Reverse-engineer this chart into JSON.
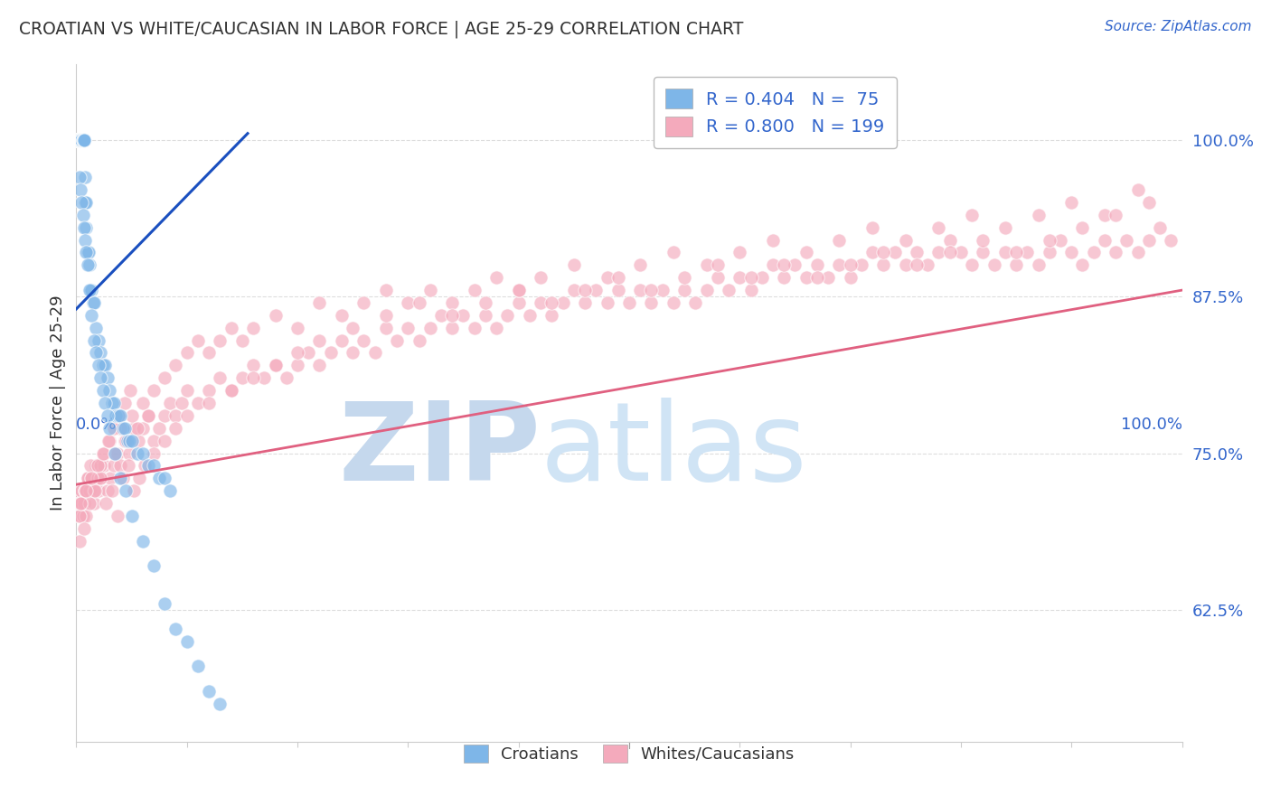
{
  "title": "CROATIAN VS WHITE/CAUCASIAN IN LABOR FORCE | AGE 25-29 CORRELATION CHART",
  "source": "Source: ZipAtlas.com",
  "ylabel": "In Labor Force | Age 25-29",
  "y_tick_labels": [
    "62.5%",
    "75.0%",
    "87.5%",
    "100.0%"
  ],
  "y_tick_values": [
    0.625,
    0.75,
    0.875,
    1.0
  ],
  "legend": {
    "blue_R": "R = 0.404",
    "blue_N": "N =  75",
    "pink_R": "R = 0.800",
    "pink_N": "N = 199"
  },
  "blue_color": "#7EB6E8",
  "pink_color": "#F4AABC",
  "blue_line_color": "#1A4FBF",
  "pink_line_color": "#E06080",
  "blue_scatter_x": [
    0.001,
    0.001,
    0.001,
    0.001,
    0.001,
    0.001,
    0.001,
    0.001,
    0.001,
    0.001,
    0.001,
    0.001,
    0.001,
    0.001,
    0.001,
    0.001,
    0.002,
    0.002,
    0.002,
    0.002,
    0.002,
    0.002,
    0.003,
    0.003,
    0.003,
    0.003,
    0.003,
    0.004,
    0.004,
    0.004,
    0.004,
    0.005,
    0.005,
    0.005,
    0.006,
    0.006,
    0.006,
    0.007,
    0.007,
    0.007,
    0.008,
    0.008,
    0.009,
    0.009,
    0.01,
    0.011,
    0.012,
    0.013,
    0.014,
    0.015,
    0.016,
    0.018,
    0.02,
    0.022,
    0.024,
    0.026,
    0.028,
    0.03,
    0.032,
    0.034,
    0.036,
    0.038,
    0.04,
    0.042,
    0.044,
    0.046,
    0.048,
    0.05,
    0.055,
    0.06,
    0.065,
    0.07,
    0.075,
    0.08,
    0.085
  ],
  "blue_scatter_y": [
    1.0,
    1.0,
    1.0,
    1.0,
    1.0,
    1.0,
    1.0,
    1.0,
    1.0,
    1.0,
    1.0,
    1.0,
    1.0,
    1.0,
    1.0,
    1.0,
    1.0,
    1.0,
    1.0,
    1.0,
    1.0,
    1.0,
    1.0,
    1.0,
    1.0,
    1.0,
    1.0,
    1.0,
    1.0,
    1.0,
    1.0,
    1.0,
    1.0,
    1.0,
    1.0,
    1.0,
    1.0,
    1.0,
    1.0,
    1.0,
    0.97,
    0.95,
    0.95,
    0.93,
    0.91,
    0.91,
    0.9,
    0.88,
    0.88,
    0.87,
    0.87,
    0.85,
    0.84,
    0.83,
    0.82,
    0.82,
    0.81,
    0.8,
    0.79,
    0.79,
    0.78,
    0.78,
    0.78,
    0.77,
    0.77,
    0.76,
    0.76,
    0.76,
    0.75,
    0.75,
    0.74,
    0.74,
    0.73,
    0.73,
    0.72
  ],
  "blue_scatter_x2": [
    0.003,
    0.004,
    0.005,
    0.006,
    0.007,
    0.008,
    0.009,
    0.01,
    0.012,
    0.014,
    0.016,
    0.018,
    0.02,
    0.022,
    0.024,
    0.026,
    0.028,
    0.03,
    0.035,
    0.04,
    0.045,
    0.05,
    0.06,
    0.07,
    0.08,
    0.09,
    0.1,
    0.11,
    0.12,
    0.13
  ],
  "blue_scatter_y2": [
    0.97,
    0.96,
    0.95,
    0.94,
    0.93,
    0.92,
    0.91,
    0.9,
    0.88,
    0.86,
    0.84,
    0.83,
    0.82,
    0.81,
    0.8,
    0.79,
    0.78,
    0.77,
    0.75,
    0.73,
    0.72,
    0.7,
    0.68,
    0.66,
    0.63,
    0.61,
    0.6,
    0.58,
    0.56,
    0.55
  ],
  "pink_scatter_x": [
    0.001,
    0.002,
    0.003,
    0.004,
    0.005,
    0.006,
    0.007,
    0.008,
    0.009,
    0.01,
    0.012,
    0.014,
    0.016,
    0.018,
    0.02,
    0.022,
    0.025,
    0.028,
    0.031,
    0.034,
    0.037,
    0.04,
    0.044,
    0.048,
    0.052,
    0.056,
    0.06,
    0.065,
    0.07,
    0.075,
    0.08,
    0.085,
    0.09,
    0.095,
    0.1,
    0.11,
    0.12,
    0.13,
    0.14,
    0.15,
    0.16,
    0.17,
    0.18,
    0.19,
    0.2,
    0.21,
    0.22,
    0.23,
    0.24,
    0.25,
    0.26,
    0.27,
    0.28,
    0.29,
    0.3,
    0.31,
    0.32,
    0.33,
    0.34,
    0.35,
    0.36,
    0.37,
    0.38,
    0.39,
    0.4,
    0.41,
    0.42,
    0.43,
    0.44,
    0.45,
    0.46,
    0.47,
    0.48,
    0.49,
    0.5,
    0.51,
    0.52,
    0.53,
    0.54,
    0.55,
    0.56,
    0.57,
    0.58,
    0.59,
    0.6,
    0.61,
    0.62,
    0.63,
    0.64,
    0.65,
    0.66,
    0.67,
    0.68,
    0.69,
    0.7,
    0.71,
    0.72,
    0.73,
    0.74,
    0.75,
    0.76,
    0.77,
    0.78,
    0.79,
    0.8,
    0.81,
    0.82,
    0.83,
    0.84,
    0.85,
    0.86,
    0.87,
    0.88,
    0.89,
    0.9,
    0.91,
    0.92,
    0.93,
    0.94,
    0.95,
    0.96,
    0.97,
    0.98,
    0.99,
    0.003,
    0.005,
    0.008,
    0.01,
    0.013,
    0.016,
    0.019,
    0.022,
    0.025,
    0.03,
    0.035,
    0.04,
    0.045,
    0.05,
    0.055,
    0.06,
    0.065,
    0.07,
    0.08,
    0.09,
    0.1,
    0.11,
    0.12,
    0.13,
    0.14,
    0.15,
    0.16,
    0.18,
    0.2,
    0.22,
    0.24,
    0.26,
    0.28,
    0.3,
    0.32,
    0.34,
    0.36,
    0.38,
    0.4,
    0.42,
    0.45,
    0.48,
    0.51,
    0.54,
    0.57,
    0.6,
    0.63,
    0.66,
    0.69,
    0.72,
    0.75,
    0.78,
    0.81,
    0.84,
    0.87,
    0.9,
    0.93,
    0.96,
    0.003,
    0.007,
    0.012,
    0.017,
    0.022,
    0.027,
    0.032,
    0.037,
    0.042,
    0.047,
    0.052,
    0.057,
    0.062,
    0.07,
    0.08,
    0.09,
    0.1,
    0.12,
    0.14,
    0.16,
    0.18,
    0.2,
    0.22,
    0.25,
    0.28,
    0.31,
    0.34,
    0.37,
    0.4,
    0.43,
    0.46,
    0.49,
    0.52,
    0.55,
    0.58,
    0.61,
    0.64,
    0.67,
    0.7,
    0.73,
    0.76,
    0.79,
    0.82,
    0.85,
    0.88,
    0.91,
    0.94,
    0.97,
    0.004,
    0.009,
    0.014,
    0.019,
    0.024,
    0.029,
    0.034,
    0.039,
    0.044,
    0.049
  ],
  "pink_scatter_y": [
    0.72,
    0.71,
    0.7,
    0.71,
    0.72,
    0.7,
    0.71,
    0.72,
    0.7,
    0.73,
    0.72,
    0.73,
    0.71,
    0.74,
    0.72,
    0.73,
    0.74,
    0.72,
    0.73,
    0.74,
    0.75,
    0.74,
    0.76,
    0.75,
    0.77,
    0.76,
    0.77,
    0.78,
    0.76,
    0.77,
    0.78,
    0.79,
    0.78,
    0.79,
    0.8,
    0.79,
    0.8,
    0.81,
    0.8,
    0.81,
    0.82,
    0.81,
    0.82,
    0.81,
    0.82,
    0.83,
    0.82,
    0.83,
    0.84,
    0.83,
    0.84,
    0.83,
    0.85,
    0.84,
    0.85,
    0.84,
    0.85,
    0.86,
    0.85,
    0.86,
    0.85,
    0.86,
    0.85,
    0.86,
    0.87,
    0.86,
    0.87,
    0.86,
    0.87,
    0.88,
    0.87,
    0.88,
    0.87,
    0.88,
    0.87,
    0.88,
    0.87,
    0.88,
    0.87,
    0.88,
    0.87,
    0.88,
    0.89,
    0.88,
    0.89,
    0.88,
    0.89,
    0.9,
    0.89,
    0.9,
    0.89,
    0.9,
    0.89,
    0.9,
    0.89,
    0.9,
    0.91,
    0.9,
    0.91,
    0.9,
    0.91,
    0.9,
    0.91,
    0.92,
    0.91,
    0.9,
    0.91,
    0.9,
    0.91,
    0.9,
    0.91,
    0.9,
    0.91,
    0.92,
    0.91,
    0.9,
    0.91,
    0.92,
    0.91,
    0.92,
    0.91,
    0.92,
    0.93,
    0.92,
    0.7,
    0.71,
    0.72,
    0.73,
    0.74,
    0.72,
    0.73,
    0.74,
    0.75,
    0.76,
    0.75,
    0.77,
    0.76,
    0.78,
    0.77,
    0.79,
    0.78,
    0.8,
    0.81,
    0.82,
    0.83,
    0.84,
    0.83,
    0.84,
    0.85,
    0.84,
    0.85,
    0.86,
    0.85,
    0.87,
    0.86,
    0.87,
    0.88,
    0.87,
    0.88,
    0.87,
    0.88,
    0.89,
    0.88,
    0.89,
    0.9,
    0.89,
    0.9,
    0.91,
    0.9,
    0.91,
    0.92,
    0.91,
    0.92,
    0.93,
    0.92,
    0.93,
    0.94,
    0.93,
    0.94,
    0.95,
    0.94,
    0.96,
    0.68,
    0.69,
    0.71,
    0.72,
    0.73,
    0.71,
    0.72,
    0.7,
    0.73,
    0.74,
    0.72,
    0.73,
    0.74,
    0.75,
    0.76,
    0.77,
    0.78,
    0.79,
    0.8,
    0.81,
    0.82,
    0.83,
    0.84,
    0.85,
    0.86,
    0.87,
    0.86,
    0.87,
    0.88,
    0.87,
    0.88,
    0.89,
    0.88,
    0.89,
    0.9,
    0.89,
    0.9,
    0.89,
    0.9,
    0.91,
    0.9,
    0.91,
    0.92,
    0.91,
    0.92,
    0.93,
    0.94,
    0.95,
    0.71,
    0.72,
    0.73,
    0.74,
    0.75,
    0.76,
    0.77,
    0.78,
    0.79,
    0.8
  ],
  "blue_trend_x": [
    0.0,
    0.155
  ],
  "blue_trend_y": [
    0.865,
    1.005
  ],
  "pink_trend_x": [
    0.0,
    1.0
  ],
  "pink_trend_y": [
    0.725,
    0.88
  ],
  "xlim": [
    0.0,
    1.0
  ],
  "ylim": [
    0.52,
    1.06
  ],
  "background_color": "#ffffff",
  "grid_color": "#dddddd",
  "title_color": "#333333",
  "axis_label_color": "#3366CC",
  "watermark_ZIP_color": "#C5D8ED",
  "watermark_atlas_color": "#D0E4F5"
}
